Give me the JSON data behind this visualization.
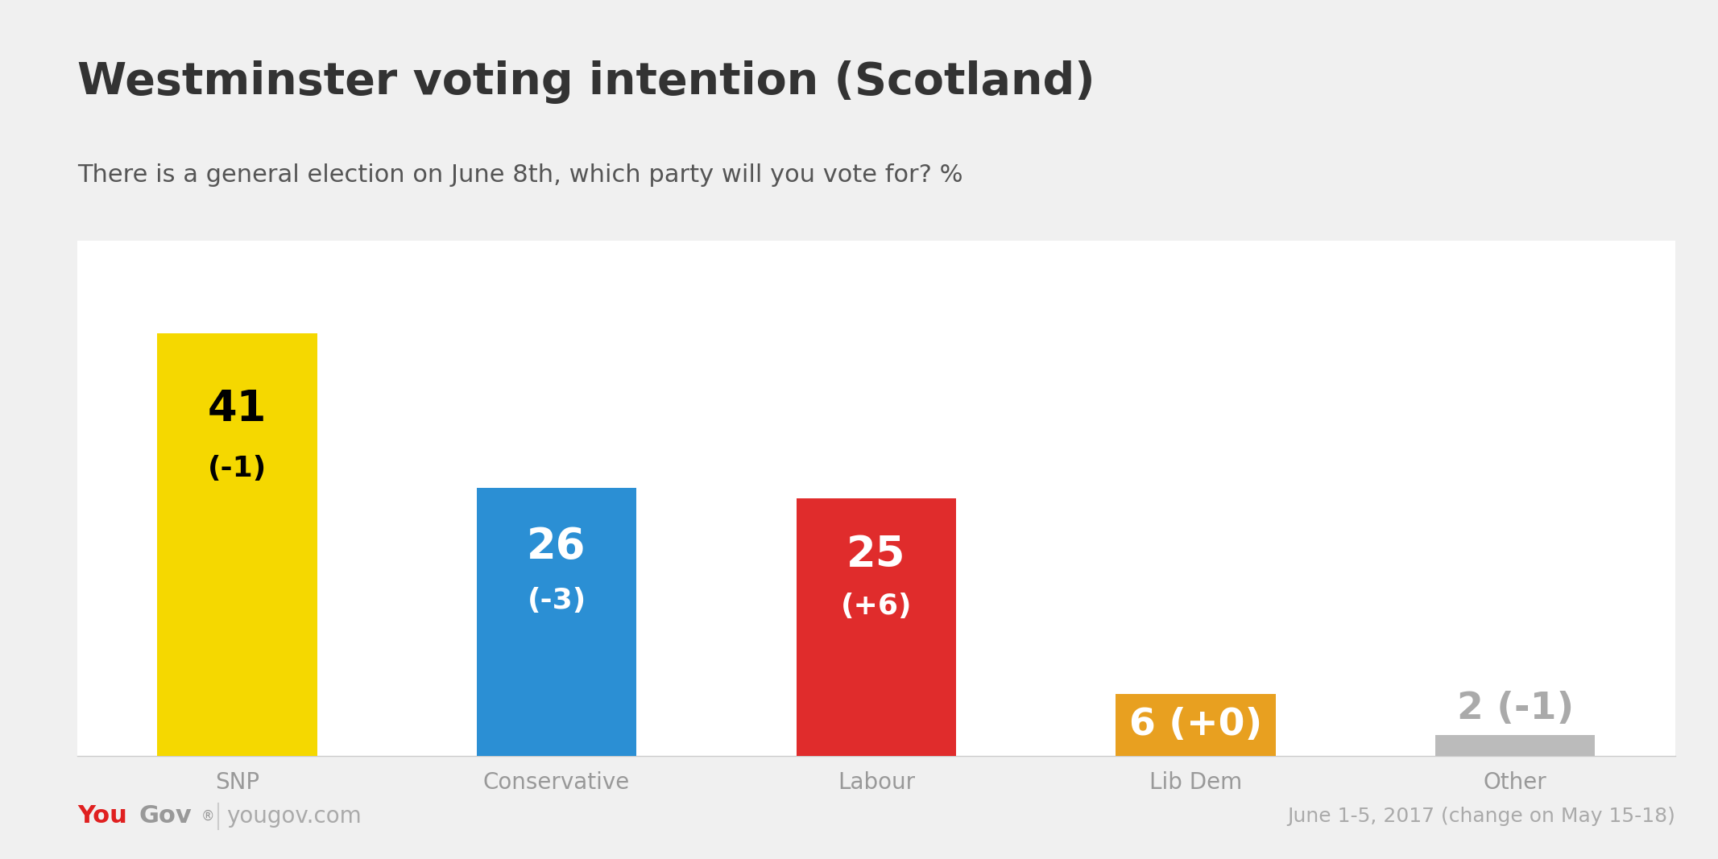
{
  "title": "Westminster voting intention (Scotland)",
  "subtitle": "There is a general election on June 8th, which party will you vote for? %",
  "categories": [
    "SNP",
    "Conservative",
    "Labour",
    "Lib Dem",
    "Other"
  ],
  "values": [
    41,
    26,
    25,
    6,
    2
  ],
  "changes": [
    "(-1)",
    "(-3)",
    "(+6)",
    "(+0)",
    "(-1)"
  ],
  "bar_colors": [
    "#F5D800",
    "#2B8FD4",
    "#E02C2C",
    "#E8A020",
    "#BBBBBB"
  ],
  "label_colors": [
    "#000000",
    "#FFFFFF",
    "#FFFFFF",
    "#FFFFFF",
    "#AAAAAA"
  ],
  "background_color": "#F0F0F0",
  "title_color": "#333333",
  "subtitle_color": "#555555",
  "axis_label_color": "#999999",
  "footer_date": "June 1-5, 2017 (change on May 15-18)",
  "footer_color": "#AAAAAA",
  "ylim": [
    0,
    50
  ],
  "value_fontsize": 38,
  "change_fontsize": 26,
  "category_fontsize": 20,
  "title_fontsize": 40,
  "subtitle_fontsize": 22,
  "yougov_red": "#E02020",
  "yougov_gray": "#999999"
}
